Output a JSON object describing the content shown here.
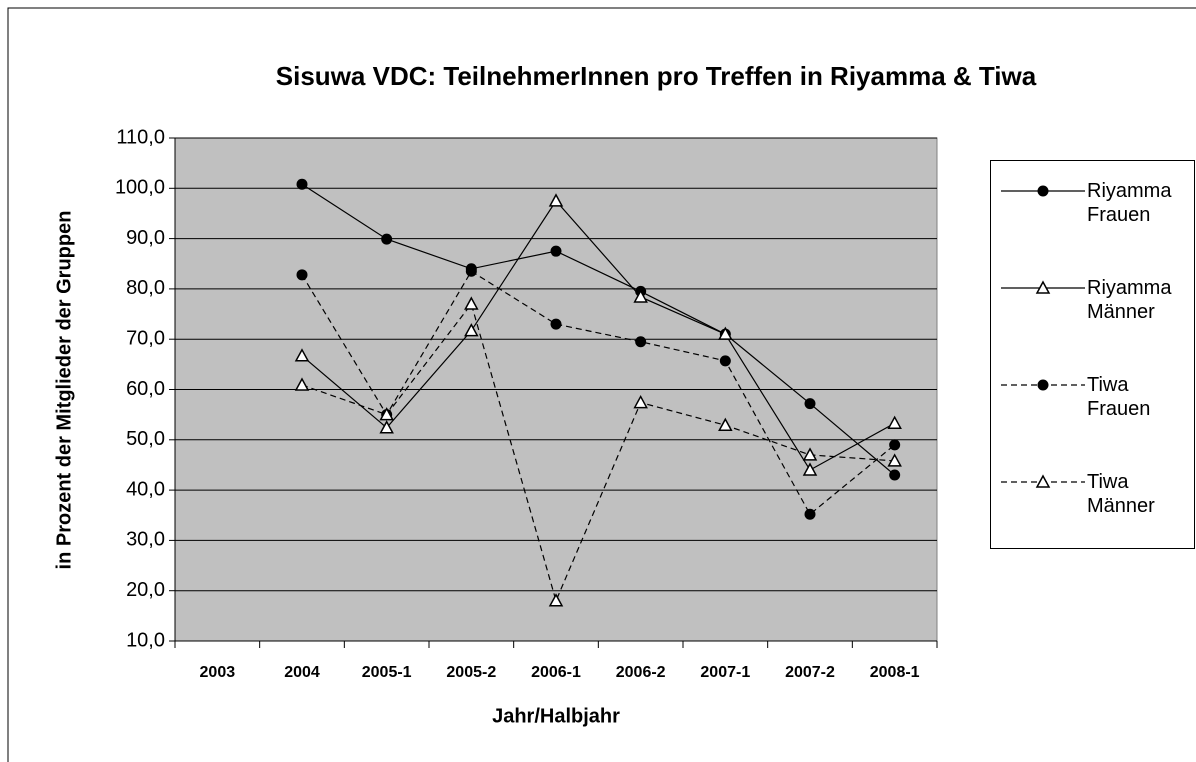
{
  "chart_data": {
    "type": "line",
    "title": "Sisuwa VDC: TeilnehmerInnen pro Treffen in Riyamma & Tiwa",
    "x_label": "Jahr/Halbjahr",
    "y_label": "in Prozent der Mitglieder der Gruppen",
    "categories": [
      "2003",
      "2004",
      "2005-1",
      "2005-2",
      "2006-1",
      "2006-2",
      "2007-1",
      "2007-2",
      "2008-1"
    ],
    "series": [
      {
        "name": "Riyamma Frauen",
        "color": "#000000",
        "marker": "circle",
        "dashed": false,
        "values": [
          null,
          100.8,
          89.9,
          84.0,
          87.5,
          79.5,
          71.0,
          57.2,
          43.0
        ]
      },
      {
        "name": "Riyamma Männer",
        "color": "#000000",
        "marker": "triangle",
        "dashed": false,
        "values": [
          null,
          66.7,
          52.4,
          71.7,
          97.5,
          78.4,
          71.0,
          44.0,
          53.3
        ]
      },
      {
        "name": "Tiwa Frauen",
        "color": "#000000",
        "marker": "circle",
        "dashed": true,
        "values": [
          null,
          82.8,
          55.0,
          83.5,
          73.0,
          69.5,
          65.7,
          35.2,
          49.0
        ]
      },
      {
        "name": "Tiwa Männer",
        "color": "#000000",
        "marker": "triangle",
        "dashed": true,
        "values": [
          null,
          60.9,
          55.0,
          77.0,
          18.0,
          57.4,
          52.9,
          47.0,
          45.8
        ]
      }
    ],
    "ylim": [
      10,
      110
    ],
    "yticks": [
      {
        "value": 10,
        "label": "10,0"
      },
      {
        "value": 20,
        "label": "20,0"
      },
      {
        "value": 30,
        "label": "30,0"
      },
      {
        "value": 40,
        "label": "40,0"
      },
      {
        "value": 50,
        "label": "50,0"
      },
      {
        "value": 60,
        "label": "60,0"
      },
      {
        "value": 70,
        "label": "70,0"
      },
      {
        "value": 80,
        "label": "80,0"
      },
      {
        "value": 90,
        "label": "90,0"
      },
      {
        "value": 100,
        "label": "100,0"
      },
      {
        "value": 110,
        "label": "110,0"
      }
    ],
    "grid": true,
    "legend": "right"
  }
}
